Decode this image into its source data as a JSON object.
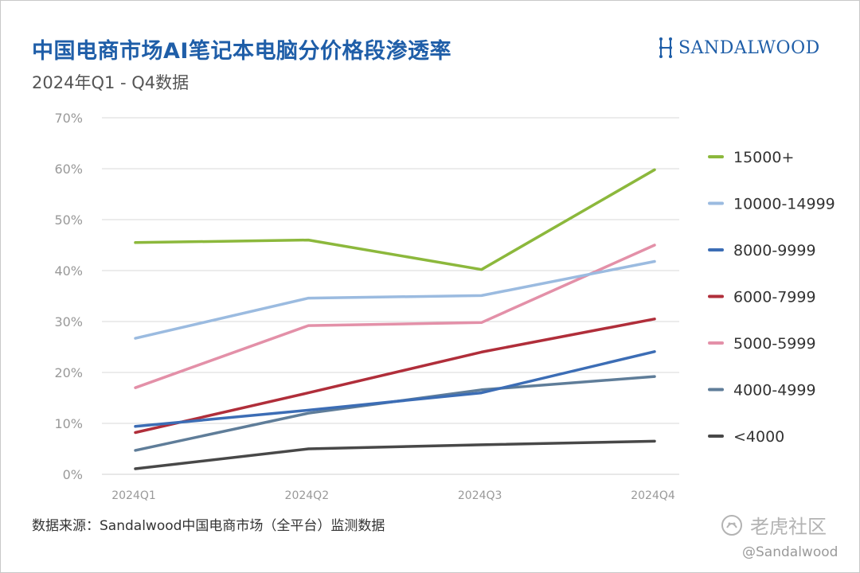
{
  "header": {
    "title": "中国电商市场AI笔记本电脑分价格段渗透率",
    "subtitle": "2024年Q1 - Q4数据",
    "brand": "SANDALWOOD",
    "brand_icon": "sandalwood-logo-icon"
  },
  "footer": {
    "source": "数据来源：Sandalwood中国电商市场（全平台）监测数据",
    "watermark": "老虎社区",
    "watermark_icon": "tiger-community-logo-icon",
    "handle": "@Sandalwood"
  },
  "colors": {
    "title": "#1f5ea8",
    "grid": "#d9d9d9",
    "axis_text": "#999999"
  },
  "chart_data": {
    "type": "line",
    "categories": [
      "2024Q1",
      "2024Q2",
      "2024Q3",
      "2024Q4"
    ],
    "ylim": [
      0,
      70
    ],
    "yticks": [
      "0%",
      "10%",
      "20%",
      "30%",
      "40%",
      "50%",
      "60%",
      "70%"
    ],
    "grid": true,
    "legend_position": "right",
    "series": [
      {
        "name": "15000+",
        "color": "#8cb83c",
        "values": [
          45.5,
          46.0,
          40.2,
          59.8
        ]
      },
      {
        "name": "10000-14999",
        "color": "#9bbbe0",
        "values": [
          26.7,
          34.6,
          35.1,
          41.8
        ]
      },
      {
        "name": "8000-9999",
        "color": "#3c6db5",
        "values": [
          9.4,
          12.6,
          16.0,
          24.1
        ]
      },
      {
        "name": "6000-7999",
        "color": "#b02e3a",
        "values": [
          8.2,
          16.0,
          24.0,
          30.5
        ]
      },
      {
        "name": "5000-5999",
        "color": "#e390a8",
        "values": [
          17.0,
          29.2,
          29.8,
          45.0
        ]
      },
      {
        "name": "4000-4999",
        "color": "#5f7d99",
        "values": [
          4.7,
          12.0,
          16.6,
          19.2
        ]
      },
      {
        "name": "<4000",
        "color": "#484848",
        "values": [
          1.1,
          5.0,
          5.8,
          6.5
        ]
      }
    ]
  }
}
